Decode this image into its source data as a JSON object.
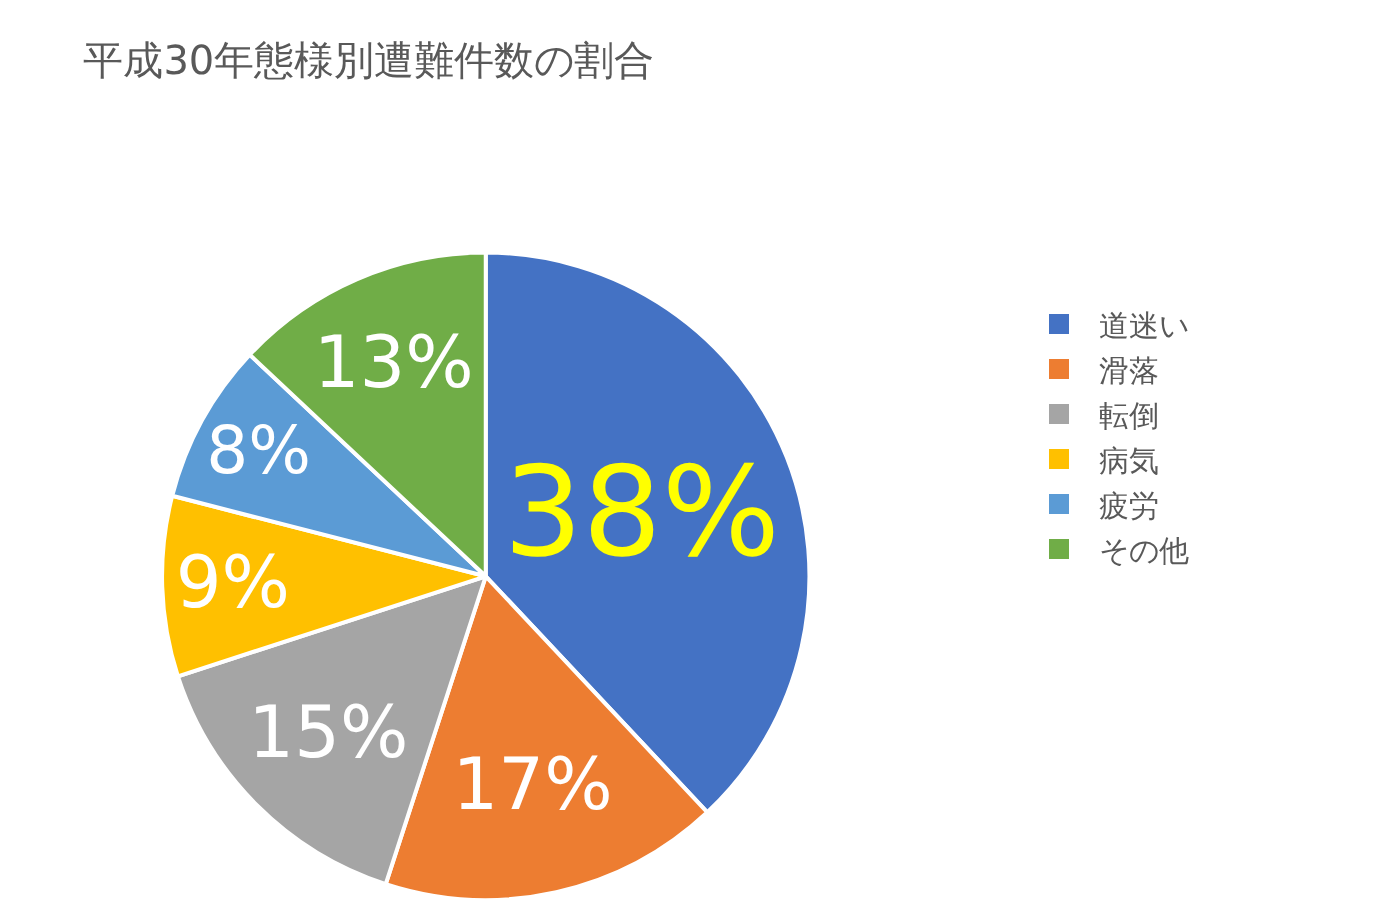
{
  "chart_data": {
    "type": "pie",
    "title": "平成30年態様別遭難件数の割合",
    "categories": [
      "道迷い",
      "滑落",
      "転倒",
      "病気",
      "疲労",
      "その他"
    ],
    "values": [
      38,
      17,
      15,
      9,
      8,
      13
    ],
    "colors": [
      "#4472c4",
      "#ed7d31",
      "#a5a5a5",
      "#ffc000",
      "#5b9bd5",
      "#70ad47"
    ],
    "value_labels": [
      "38%",
      "17%",
      "15%",
      "9%",
      "8%",
      "13%"
    ],
    "legend": "right"
  }
}
